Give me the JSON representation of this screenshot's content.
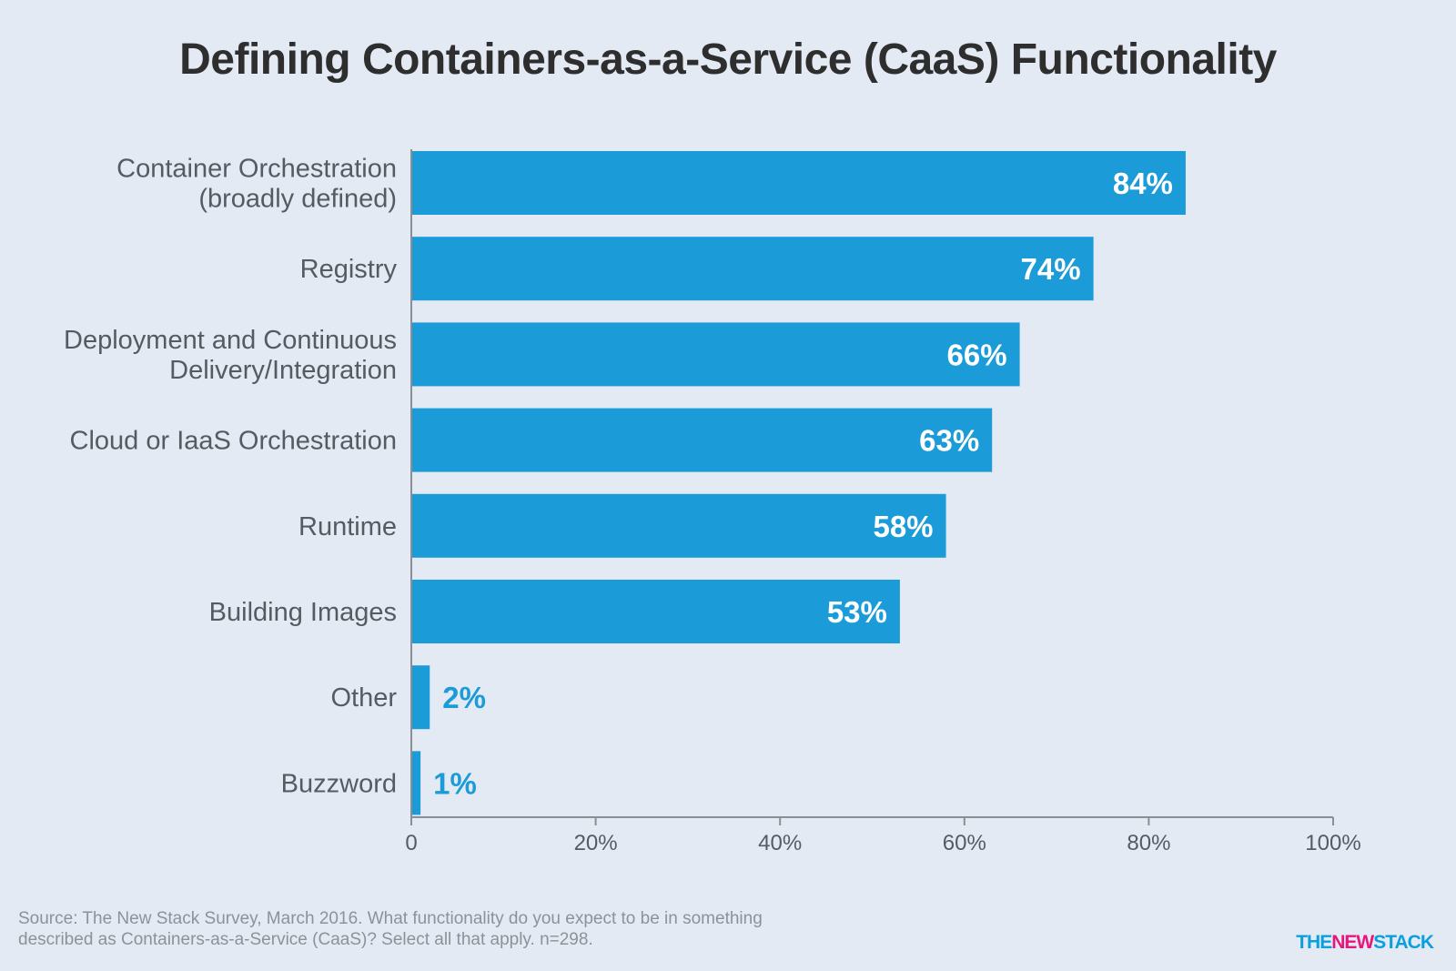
{
  "logo": {
    "part1": "THE",
    "part2": "NEW",
    "part3": "STACK"
  },
  "source_note": "Source: The New Stack Survey, March 2016. What functionality do you expect to be in something described as Containers-as-a-Service (CaaS)? Select all that apply. n=298.",
  "colors": {
    "bar": "#1b9bd7",
    "label_inside": "#ffffff",
    "label_outside": "#1b9bd7",
    "axis": "#8a8f94",
    "background": "#e3eaf3"
  },
  "chart_data": {
    "type": "bar",
    "orientation": "horizontal",
    "title": "Defining Containers-as-a-Service (CaaS) Functionality",
    "xlabel": "",
    "ylabel": "",
    "categories": [
      [
        "Container Orchestration",
        "(broadly defined)"
      ],
      [
        "Registry"
      ],
      [
        "Deployment and Continuous",
        "Delivery/Integration"
      ],
      [
        "Cloud or IaaS Orchestration"
      ],
      [
        "Runtime"
      ],
      [
        "Building Images"
      ],
      [
        "Other"
      ],
      [
        "Buzzword"
      ]
    ],
    "values": [
      84,
      74,
      66,
      63,
      58,
      53,
      2,
      1
    ],
    "value_labels": [
      "84%",
      "74%",
      "66%",
      "63%",
      "58%",
      "53%",
      "2%",
      "1%"
    ],
    "xlim": [
      0,
      100
    ],
    "ticks": [
      0,
      20,
      40,
      60,
      80,
      100
    ],
    "tick_labels": [
      "0",
      "20%",
      "40%",
      "60%",
      "80%",
      "100%"
    ],
    "grid": false,
    "legend": "none"
  }
}
